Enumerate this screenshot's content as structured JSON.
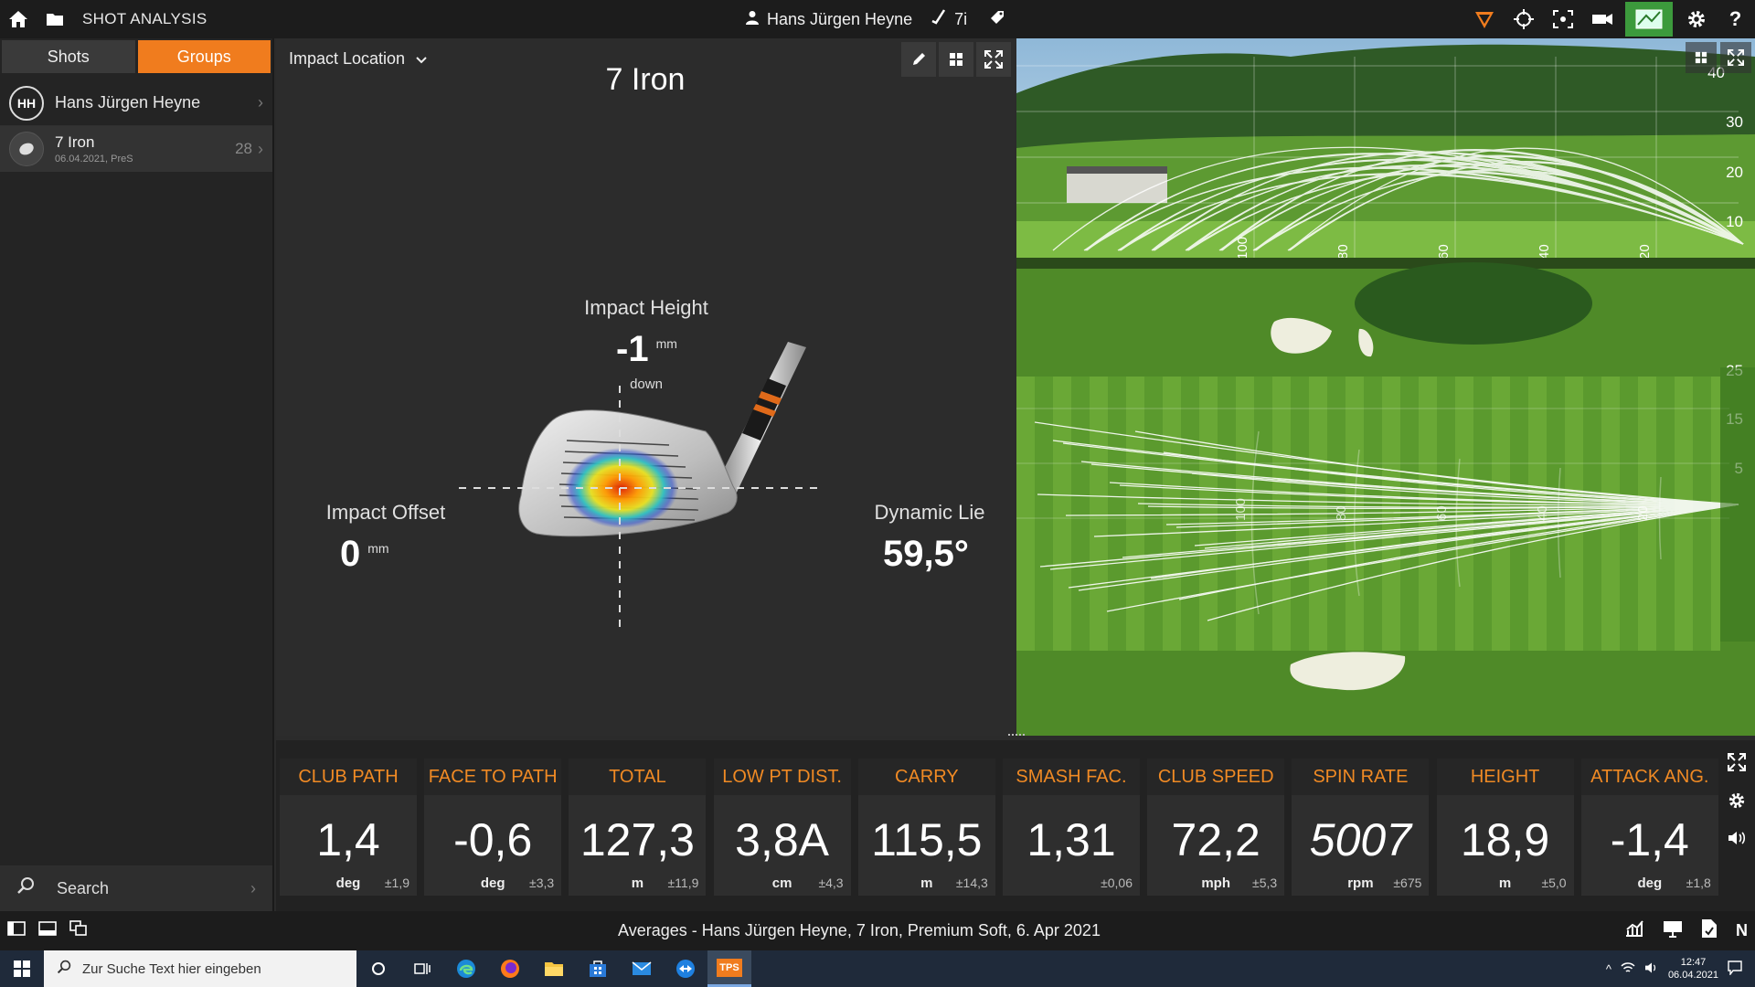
{
  "titlebar": {
    "app_title": "SHOT ANALYSIS",
    "player": "Hans Jürgen Heyne",
    "club": "7i"
  },
  "left": {
    "tabs": [
      {
        "label": "Shots",
        "active": false
      },
      {
        "label": "Groups",
        "active": true
      }
    ],
    "user": {
      "initials": "HH",
      "name": "Hans Jürgen Heyne"
    },
    "club_row": {
      "name": "7 Iron",
      "sub": "06.04.2021, PreS",
      "count": "28"
    },
    "search_label": "Search"
  },
  "center": {
    "view_select": "Impact Location",
    "club_title": "7 Iron",
    "impact_height": {
      "label": "Impact Height",
      "value": "-1",
      "unit": "mm",
      "direction": "down"
    },
    "impact_offset": {
      "label": "Impact Offset",
      "value": "0",
      "unit": "mm"
    },
    "dynamic_lie": {
      "label": "Dynamic Lie",
      "value": "59,5°"
    }
  },
  "trajectory": {
    "side_ticks": [
      "40",
      "30",
      "20",
      "10"
    ],
    "distance_ticks": [
      "100",
      "80",
      "60",
      "40",
      "20"
    ],
    "top_view_ticks": [
      "25",
      "15",
      "5"
    ],
    "top_view_distance_ticks": [
      "100",
      "80",
      "60",
      "40",
      "20"
    ]
  },
  "stats": [
    {
      "label": "CLUB PATH",
      "value": "1,4",
      "unit": "deg",
      "dev": "±1,9",
      "italic": false
    },
    {
      "label": "FACE TO PATH",
      "value": "-0,6",
      "unit": "deg",
      "dev": "±3,3",
      "italic": false
    },
    {
      "label": "TOTAL",
      "value": "127,3",
      "unit": "m",
      "dev": "±11,9",
      "italic": false
    },
    {
      "label": "LOW PT DIST.",
      "value": "3,8A",
      "unit": "cm",
      "dev": "±4,3",
      "italic": false
    },
    {
      "label": "CARRY",
      "value": "115,5",
      "unit": "m",
      "dev": "±14,3",
      "italic": false
    },
    {
      "label": "SMASH FAC.",
      "value": "1,31",
      "unit": "",
      "dev": "±0,06",
      "italic": false
    },
    {
      "label": "CLUB SPEED",
      "value": "72,2",
      "unit": "mph",
      "dev": "±5,3",
      "italic": false
    },
    {
      "label": "SPIN RATE",
      "value": "5007",
      "unit": "rpm",
      "dev": "±675",
      "italic": true
    },
    {
      "label": "HEIGHT",
      "value": "18,9",
      "unit": "m",
      "dev": "±5,0",
      "italic": false
    },
    {
      "label": "ATTACK ANG.",
      "value": "-1,4",
      "unit": "deg",
      "dev": "±1,8",
      "italic": false
    }
  ],
  "footer": {
    "summary": "Averages - Hans Jürgen Heyne, 7 Iron, Premium Soft, 6. Apr 2021",
    "right_letter": "N"
  },
  "taskbar": {
    "search_placeholder": "Zur Suche Text hier eingeben",
    "tps_label": "TPS",
    "time": "12:47",
    "date": "06.04.2021"
  },
  "colors": {
    "accent": "#f07c1e",
    "stat_header": "#f08a24",
    "active_green": "#3c9a3c"
  }
}
